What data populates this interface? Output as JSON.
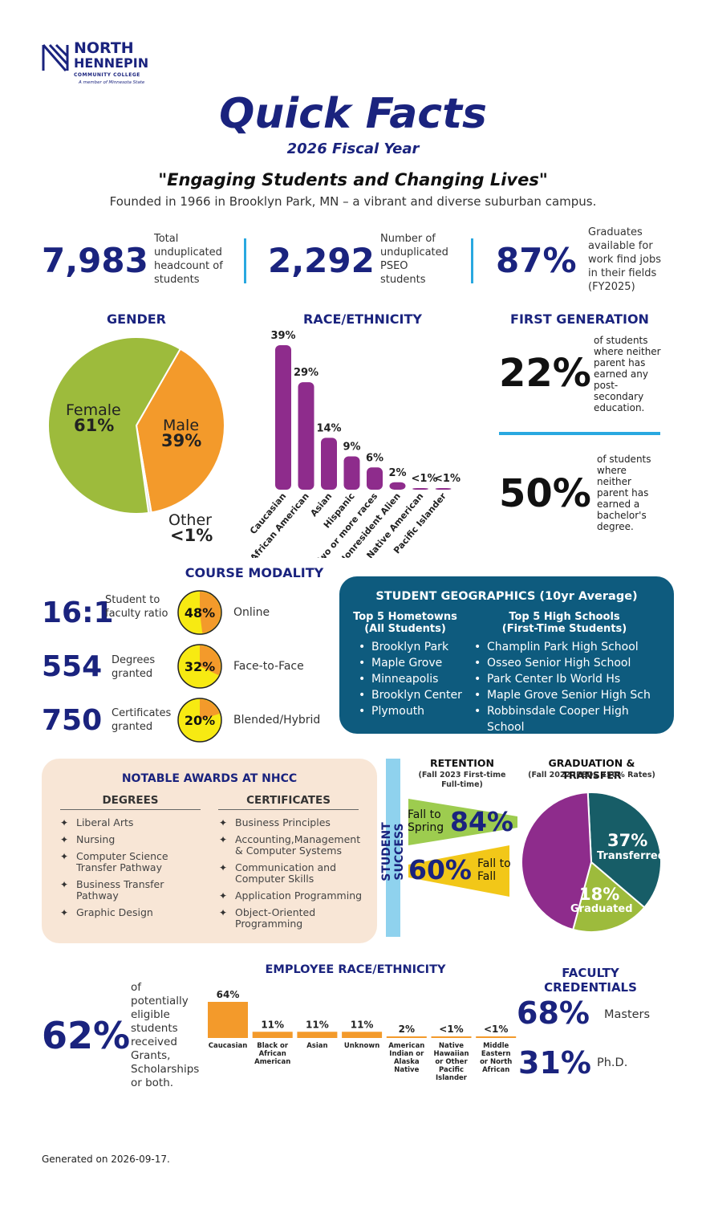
{
  "logo": {
    "line1": "NORTH",
    "line2": "HENNEPIN",
    "line3": "COMMUNITY COLLEGE",
    "tagline": "A member of Minnesota State",
    "icon": "nhcc-logo-icon",
    "color": "#1a237e"
  },
  "header": {
    "title": "Quick Facts",
    "subtitle": "2026 Fiscal Year",
    "motto": "\"Engaging Students and Changing Lives\"",
    "founded": "Founded in 1966 in Brooklyn Park, MN – a vibrant and diverse suburban campus."
  },
  "stats": [
    {
      "value": "7,983",
      "label": "Total unduplicated headcount of students"
    },
    {
      "value": "2,292",
      "label": "Number of unduplicated PSEO students"
    },
    {
      "value": "87%",
      "label": "Graduates available for work find jobs in their fields (FY2025)"
    }
  ],
  "gender": {
    "title": "GENDER",
    "slices": [
      {
        "name": "Female",
        "pct": "61%",
        "value": 60.5,
        "color": "#9dbb3c"
      },
      {
        "name": "Male",
        "pct": "39%",
        "value": 39,
        "color": "#f39a2b"
      },
      {
        "name": "Other",
        "pct": "<1%",
        "value": 0.5,
        "color": "#ddd"
      }
    ]
  },
  "race": {
    "title": "RACE/ETHNICITY",
    "color": "#8e2c8c",
    "bars": [
      {
        "name": "Caucasian",
        "label": "39%",
        "value": 39
      },
      {
        "name": "Black or African American",
        "label": "29%",
        "value": 29
      },
      {
        "name": "Asian",
        "label": "14%",
        "value": 14
      },
      {
        "name": "Hispanic",
        "label": "9%",
        "value": 9
      },
      {
        "name": "Two or more races",
        "label": "6%",
        "value": 6
      },
      {
        "name": "Nonresident Alien",
        "label": "2%",
        "value": 2
      },
      {
        "name": "Native American",
        "label": "<1%",
        "value": 0.4
      },
      {
        "name": "Pacific Islander",
        "label": "<1%",
        "value": 0.2
      }
    ]
  },
  "firstgen": {
    "title": "FIRST GENERATION",
    "items": [
      {
        "value": "22%",
        "label": "of students where neither parent has earned any post-secondary education."
      },
      {
        "value": "50%",
        "label": "of students where neither parent has earned a bachelor's degree."
      }
    ],
    "divider_color": "#29a8e0"
  },
  "modality": {
    "title": "COURSE MODALITY",
    "stats": [
      {
        "value": "16:1",
        "label": "Student to faculty ratio"
      },
      {
        "value": "554",
        "label": "Degrees granted"
      },
      {
        "value": "750",
        "label": "Certificates granted"
      }
    ],
    "types": [
      {
        "pct": "48%",
        "value": 48,
        "label": "Online"
      },
      {
        "pct": "32%",
        "value": 32,
        "label": "Face-to-Face"
      },
      {
        "pct": "20%",
        "value": 20,
        "label": "Blended/Hybrid"
      }
    ]
  },
  "geographics": {
    "title": "STUDENT GEOGRAPHICS (10yr Average)",
    "col1_title": "Top 5 Hometowns (All Students)",
    "col1": [
      "Brooklyn Park",
      "Maple Grove",
      "Minneapolis",
      "Brooklyn Center",
      "Plymouth"
    ],
    "col2_title": "Top 5 High Schools (First-Time Students)",
    "col2": [
      "Champlin Park High School",
      "Osseo Senior High School",
      "Park Center Ib World Hs",
      "Maple Grove Senior High Sch",
      "Robbinsdale Cooper High School"
    ],
    "bg": "#0e5b7e"
  },
  "awards": {
    "title": "NOTABLE AWARDS AT NHCC",
    "degrees_title": "DEGREES",
    "degrees": [
      "Liberal Arts",
      "Nursing",
      "Computer Science Transfer Pathway",
      "Business Transfer Pathway",
      "Graphic Design"
    ],
    "certs_title": "CERTIFICATES",
    "certs": [
      "Business Principles",
      "Accounting,Management & Computer Systems",
      "Communication and Computer Skills",
      "Application Programming",
      "Object-Oriented Programming"
    ],
    "bg": "#f8e6d6"
  },
  "success": {
    "label": "STUDENT SUCCESS",
    "retention_title": "RETENTION",
    "retention_sub": "(Fall 2023 First-time Full-time)",
    "fall_spring_label": "Fall to Spring",
    "fall_spring_pct": "84%",
    "fall_fall_label": "Fall to Fall",
    "fall_fall_pct": "60%",
    "grad_title": "GRADUATION & TRANSFER",
    "grad_sub": "(Fall 2022 IPEDS 150% Rates)",
    "grad_slices": [
      {
        "name": "Transferred",
        "pct": "37%",
        "value": 37,
        "color": "#175d67"
      },
      {
        "name": "Graduated",
        "pct": "18%",
        "value": 18,
        "color": "#9dbb3c"
      },
      {
        "name": "",
        "pct": "",
        "value": 45,
        "color": "#8e2c8c"
      }
    ]
  },
  "aid": {
    "value": "62%",
    "label": "of potentially eligible students received Grants, Scholarships or both."
  },
  "employee": {
    "title": "EMPLOYEE RACE/ETHNICITY",
    "color": "#f39a2b",
    "bars": [
      {
        "name": "Caucasian",
        "label": "64%",
        "value": 64
      },
      {
        "name": "Black or African American",
        "label": "11%",
        "value": 11
      },
      {
        "name": "Asian",
        "label": "11%",
        "value": 11
      },
      {
        "name": "Unknown",
        "label": "11%",
        "value": 11
      },
      {
        "name": "American Indian or Alaska Native",
        "label": "2%",
        "value": 2
      },
      {
        "name": "Native Hawaiian or Other Pacific Islander",
        "label": "<1%",
        "value": 0.3
      },
      {
        "name": "Middle Eastern or North African",
        "label": "<1%",
        "value": 0.3
      }
    ]
  },
  "faculty": {
    "title": "FACULTY CREDENTIALS",
    "items": [
      {
        "value": "68%",
        "label": "Masters"
      },
      {
        "value": "31%",
        "label": "Ph.D."
      }
    ]
  },
  "footer": {
    "generated": "Generated on 2026-09-17."
  }
}
